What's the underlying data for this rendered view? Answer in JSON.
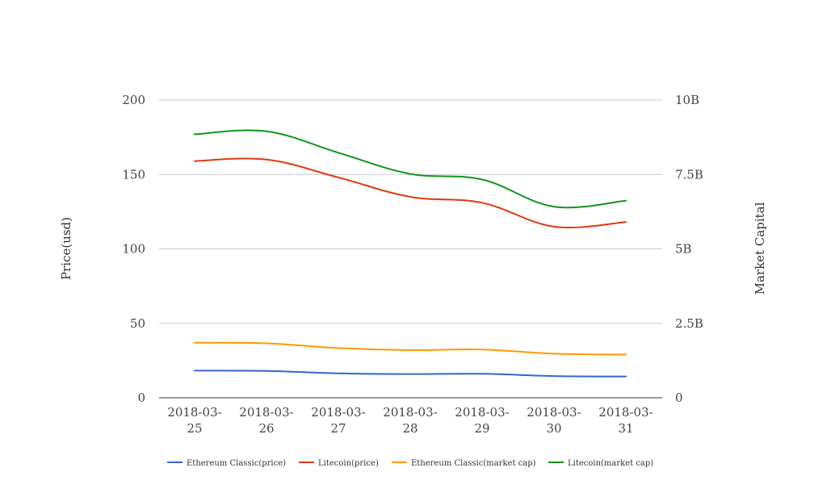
{
  "chart_data": {
    "type": "line",
    "categories": [
      "2018-03-25",
      "2018-03-26",
      "2018-03-27",
      "2018-03-28",
      "2018-03-29",
      "2018-03-30",
      "2018-03-31"
    ],
    "category_lines": [
      [
        "2018-03-",
        "25"
      ],
      [
        "2018-03-",
        "26"
      ],
      [
        "2018-03-",
        "27"
      ],
      [
        "2018-03-",
        "28"
      ],
      [
        "2018-03-",
        "29"
      ],
      [
        "2018-03-",
        "30"
      ],
      [
        "2018-03-",
        "31"
      ]
    ],
    "ylabel_left": "Price(usd)",
    "ylabel_right": "Market Capital",
    "ylim_left": [
      0,
      200
    ],
    "ylim_right": [
      0,
      10000000000
    ],
    "yticks_left": [
      "0",
      "50",
      "100",
      "150",
      "200"
    ],
    "yticks_right": [
      "0",
      "2.5B",
      "5B",
      "7.5B",
      "10B"
    ],
    "grid": true,
    "smooth": true,
    "legend_position": "bottom",
    "series": [
      {
        "name": "Ethereum Classic(price)",
        "axis": "left",
        "color": "#3366cc",
        "values": [
          18.2,
          18.0,
          16.4,
          15.9,
          16.1,
          14.6,
          14.3
        ]
      },
      {
        "name": "Litecoin(price)",
        "axis": "left",
        "color": "#dc3912",
        "values": [
          159,
          160,
          148,
          135,
          131,
          115,
          118
        ]
      },
      {
        "name": "Ethereum Classic(market cap)",
        "axis": "right",
        "color": "#ff9900",
        "values": [
          1850000000,
          1830000000,
          1670000000,
          1600000000,
          1620000000,
          1480000000,
          1450000000
        ]
      },
      {
        "name": "Litecoin(market cap)",
        "axis": "right",
        "color": "#109618",
        "values": [
          8850000000,
          8950000000,
          8230000000,
          7520000000,
          7330000000,
          6420000000,
          6620000000
        ]
      }
    ]
  }
}
